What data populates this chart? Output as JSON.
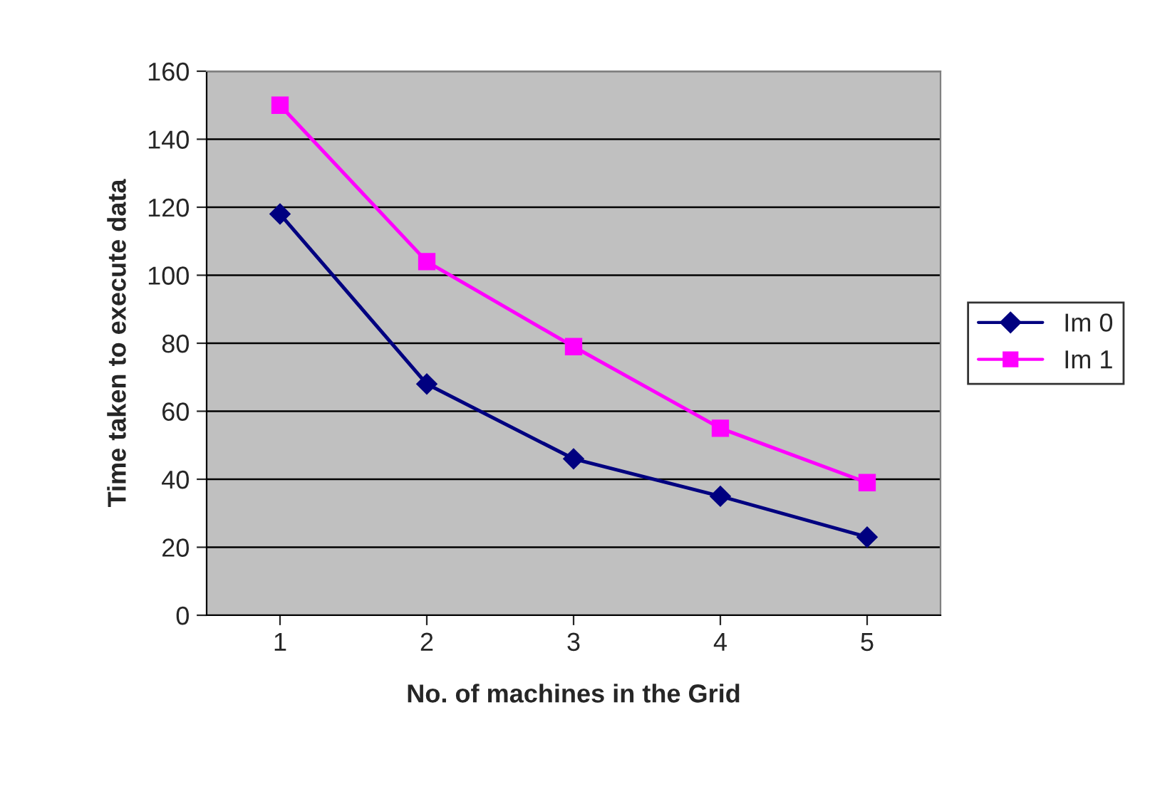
{
  "chart_data": {
    "type": "line",
    "xlabel": "No. of machines in the Grid",
    "ylabel": "Time taken to execute data",
    "categories": [
      "1",
      "2",
      "3",
      "4",
      "5"
    ],
    "series": [
      {
        "name": "Im 0",
        "color": "#000080",
        "values": [
          118,
          68,
          46,
          35,
          23
        ],
        "marker": "diamond"
      },
      {
        "name": "Im 1",
        "color": "#ff00ff",
        "values": [
          150,
          104,
          79,
          55,
          39
        ],
        "marker": "square"
      }
    ],
    "ylim": [
      0,
      160
    ],
    "yticks": [
      0,
      20,
      40,
      60,
      80,
      100,
      120,
      140,
      160
    ],
    "grid": "y",
    "legend": "right",
    "line_style": "solid"
  }
}
